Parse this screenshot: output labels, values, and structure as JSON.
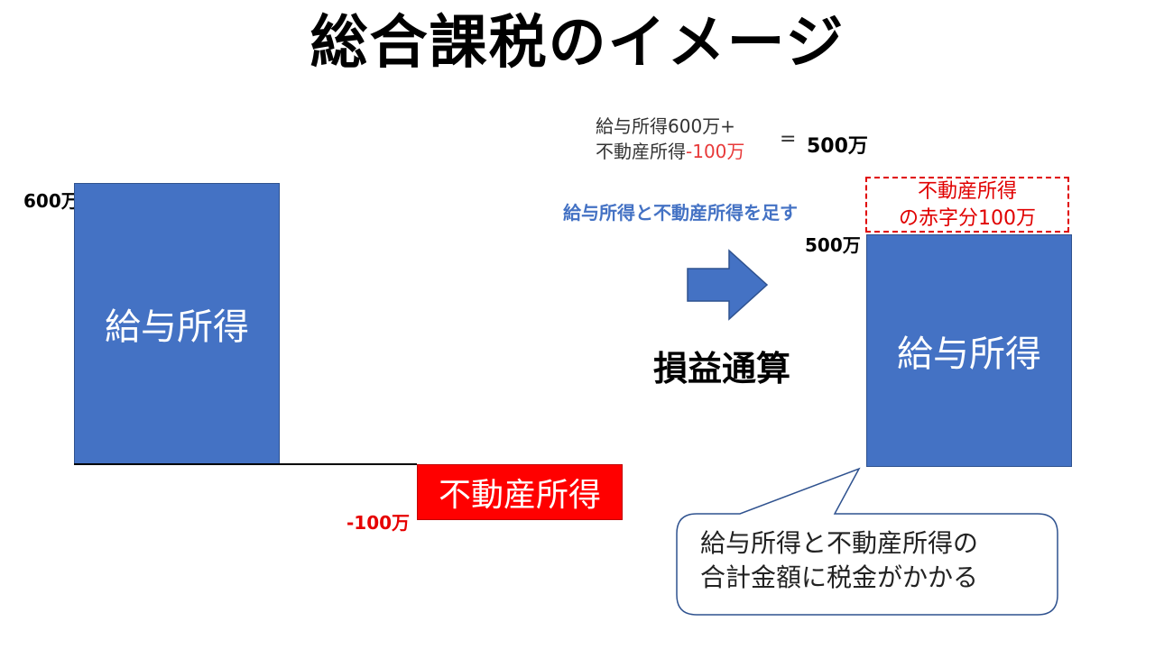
{
  "title": "総合課税のイメージ",
  "left": {
    "salary_bar": {
      "label": "給与所得",
      "value_label": "600万"
    },
    "realestate_bar": {
      "label": "不動産所得",
      "value_label": "-100万"
    }
  },
  "formula": {
    "line1": "給与所得600万+",
    "line2_text": "不動産所得",
    "line2_value": "-100万",
    "equals": "=",
    "result": "500万"
  },
  "add_note": "給与所得と不動産所得を足す",
  "offset_label": "損益通算",
  "right": {
    "deficit_box": {
      "line1": "不動産所得",
      "line2": "の赤字分100万"
    },
    "value_label": "500万",
    "salary_bar": {
      "label": "給与所得"
    }
  },
  "callout": {
    "line1": "給与所得と不動産所得の",
    "line2": "合計金額に税金がかかる"
  },
  "colors": {
    "blue": "#4472c4",
    "red": "#ff0000",
    "note_blue": "#4472c4",
    "dashed_red": "#e00000"
  },
  "icons": {
    "arrow": "right-arrow-icon"
  }
}
